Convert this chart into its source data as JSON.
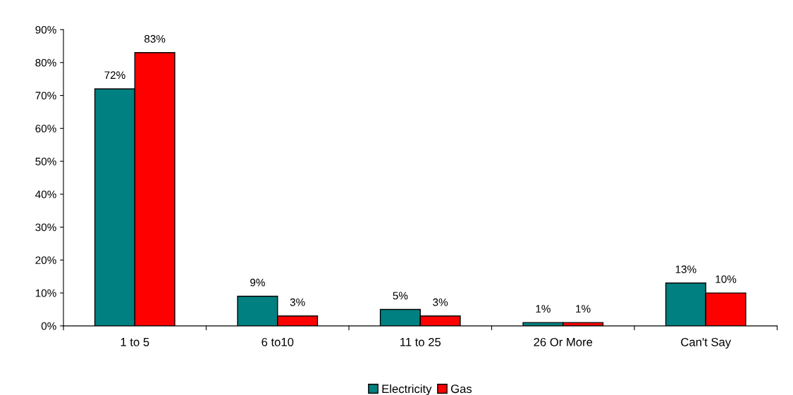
{
  "chart_data": {
    "type": "bar",
    "categories": [
      "1 to 5",
      "6 to10",
      "11 to 25",
      "26 Or More",
      "Can't Say"
    ],
    "series": [
      {
        "name": "Electricity",
        "color": "#008080",
        "values": [
          72,
          9,
          5,
          1,
          13
        ],
        "value_labels": [
          "72%",
          "9%",
          "5%",
          "1%",
          "13%"
        ]
      },
      {
        "name": "Gas",
        "color": "#ff0000",
        "values": [
          83,
          3,
          3,
          1,
          10
        ],
        "value_labels": [
          "83%",
          "3%",
          "3%",
          "1%",
          "10%"
        ]
      }
    ],
    "ylim": [
      0,
      90
    ],
    "yticks": [
      {
        "value": 0,
        "label": "0%"
      },
      {
        "value": 10,
        "label": "10%"
      },
      {
        "value": 20,
        "label": "20%"
      },
      {
        "value": 30,
        "label": "30%"
      },
      {
        "value": 40,
        "label": "40%"
      },
      {
        "value": 50,
        "label": "50%"
      },
      {
        "value": 60,
        "label": "60%"
      },
      {
        "value": 70,
        "label": "70%"
      },
      {
        "value": 80,
        "label": "80%"
      },
      {
        "value": 90,
        "label": "90%"
      }
    ],
    "grid": false,
    "legend": "bottom"
  }
}
